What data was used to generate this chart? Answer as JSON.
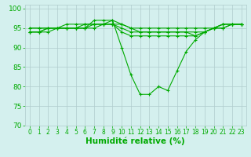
{
  "series": [
    {
      "x": [
        0,
        1,
        2,
        3,
        4,
        5,
        6,
        7,
        8,
        9,
        10,
        11,
        12,
        13,
        14,
        15,
        16,
        17,
        18,
        19,
        20,
        21,
        22,
        23
      ],
      "y": [
        94,
        94,
        94,
        95,
        95,
        95,
        95,
        97,
        97,
        97,
        90,
        83,
        78,
        78,
        80,
        79,
        84,
        89,
        92,
        94,
        95,
        96,
        96,
        96
      ]
    },
    {
      "x": [
        0,
        1,
        2,
        3,
        4,
        5,
        6,
        7,
        8,
        9,
        10,
        11,
        12,
        13,
        14,
        15,
        16,
        17,
        18,
        19,
        20,
        21,
        22,
        23
      ],
      "y": [
        95,
        95,
        95,
        95,
        96,
        96,
        96,
        96,
        96,
        97,
        96,
        95,
        95,
        95,
        95,
        95,
        95,
        95,
        95,
        95,
        95,
        96,
        96,
        96
      ]
    },
    {
      "x": [
        0,
        1,
        2,
        3,
        4,
        5,
        6,
        7,
        8,
        9,
        10,
        11,
        12,
        13,
        14,
        15,
        16,
        17,
        18,
        19,
        20,
        21,
        22,
        23
      ],
      "y": [
        94,
        94,
        95,
        95,
        95,
        95,
        95,
        96,
        96,
        96,
        94,
        93,
        93,
        93,
        93,
        93,
        93,
        93,
        93,
        94,
        95,
        95,
        96,
        96
      ]
    },
    {
      "x": [
        0,
        1,
        2,
        3,
        4,
        5,
        6,
        7,
        8,
        9,
        10,
        11,
        12,
        13,
        14,
        15,
        16,
        17,
        18,
        19,
        20,
        21,
        22,
        23
      ],
      "y": [
        95,
        95,
        95,
        95,
        95,
        95,
        95,
        95,
        96,
        96,
        96,
        95,
        94,
        94,
        94,
        94,
        94,
        94,
        94,
        94,
        95,
        96,
        96,
        96
      ]
    },
    {
      "x": [
        0,
        1,
        2,
        3,
        4,
        5,
        6,
        7,
        8,
        9,
        10,
        11,
        12,
        13,
        14,
        15,
        16,
        17,
        18,
        19,
        20,
        21,
        22,
        23
      ],
      "y": [
        94,
        94,
        95,
        95,
        95,
        95,
        96,
        96,
        96,
        96,
        95,
        94,
        94,
        94,
        94,
        94,
        94,
        94,
        93,
        94,
        95,
        95,
        96,
        96
      ]
    }
  ],
  "xlabel": "Humidité relative (%)",
  "ylim": [
    70,
    101
  ],
  "xlim": [
    -0.5,
    23.5
  ],
  "yticks": [
    70,
    75,
    80,
    85,
    90,
    95,
    100
  ],
  "xticks": [
    0,
    1,
    2,
    3,
    4,
    5,
    6,
    7,
    8,
    9,
    10,
    11,
    12,
    13,
    14,
    15,
    16,
    17,
    18,
    19,
    20,
    21,
    22,
    23
  ],
  "bg_color": "#d4f0ee",
  "grid_color": "#b0cccc",
  "line_color": "#00aa00",
  "xlabel_color": "#00aa00",
  "tick_color": "#00aa00",
  "xlabel_fontsize": 7.5,
  "tick_fontsize": 6.5
}
